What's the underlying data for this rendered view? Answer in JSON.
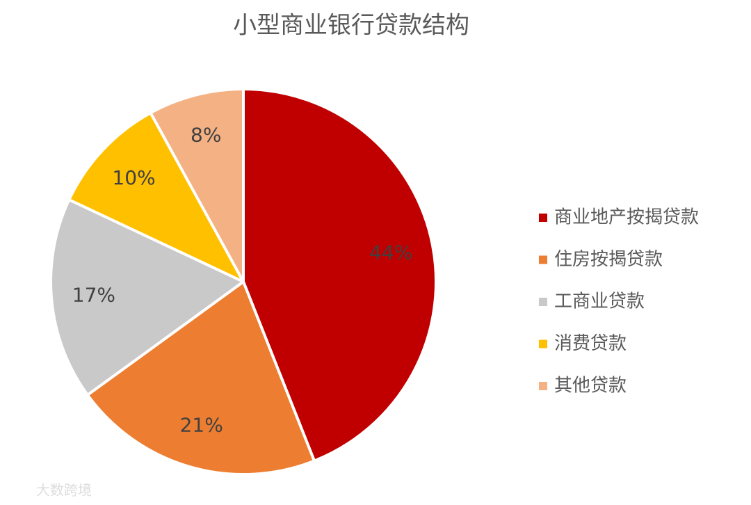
{
  "chart_data": {
    "type": "pie",
    "title": "小型商业银行贷款结构",
    "categories": [
      "商业地产按揭贷款",
      "住房按揭贷款",
      "工商业贷款",
      "消费贷款",
      "其他贷款"
    ],
    "values": [
      44,
      21,
      17,
      10,
      8
    ],
    "value_labels": [
      "44%",
      "21%",
      "17%",
      "10%",
      "8%"
    ],
    "colors": [
      "#c00000",
      "#ed7d31",
      "#c9c9c9",
      "#ffc000",
      "#f4b183"
    ],
    "legend": "right",
    "watermark": "大数跨境"
  }
}
